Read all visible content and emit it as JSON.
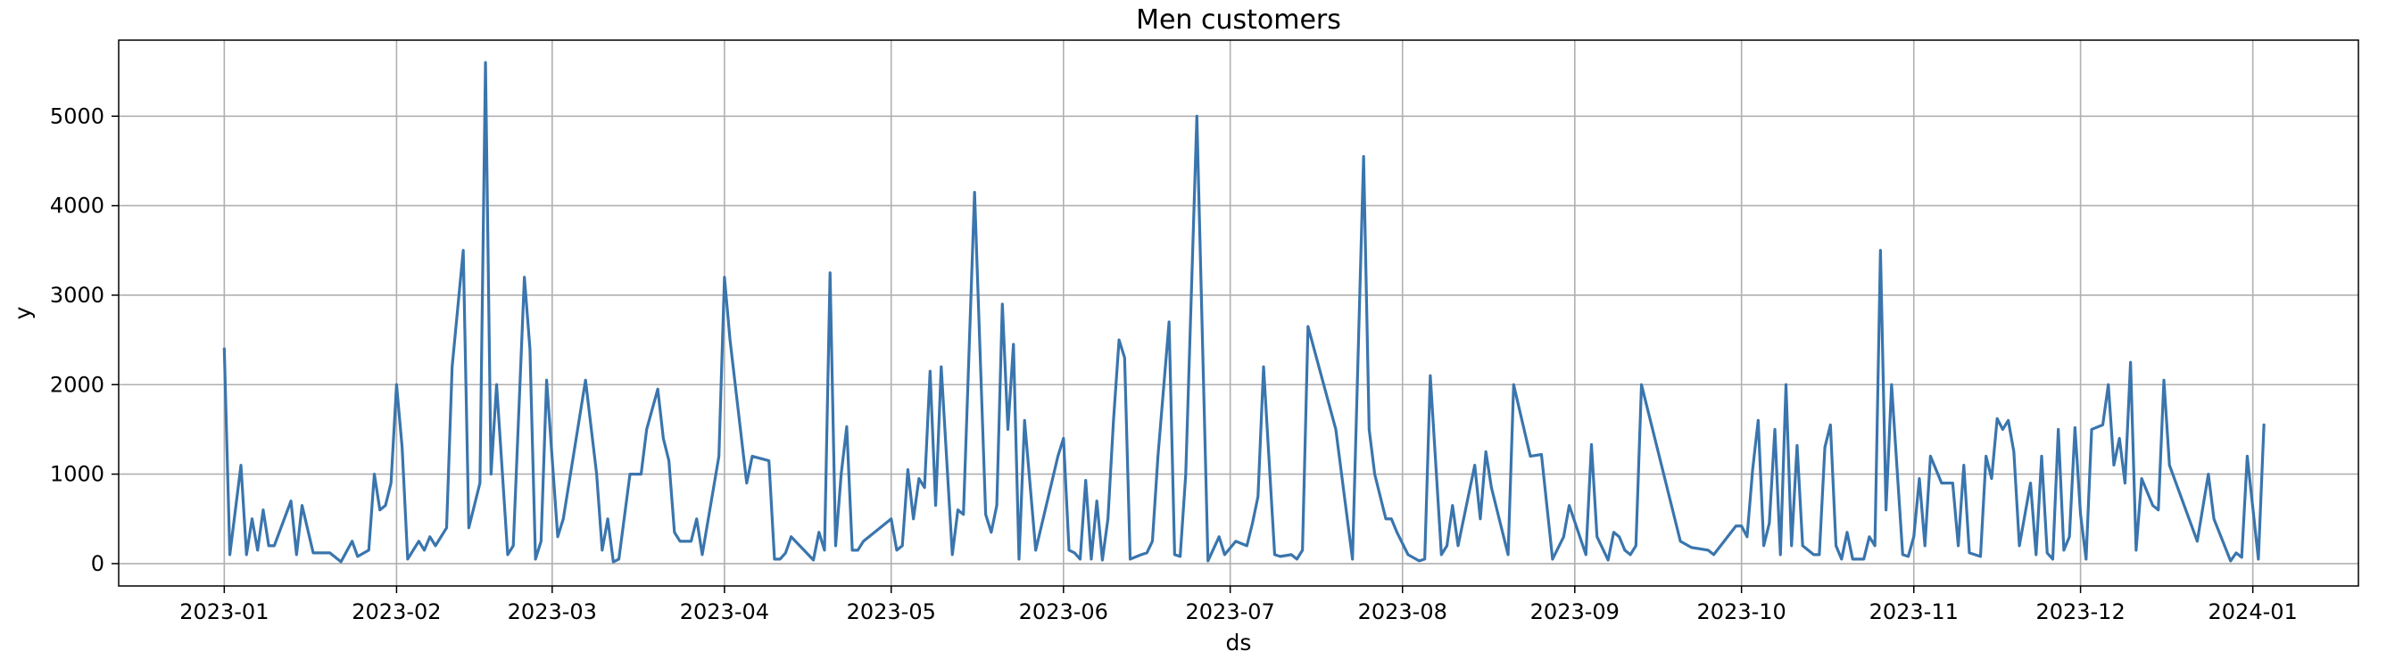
{
  "chart_data": {
    "type": "line",
    "title": "Men customers",
    "xlabel": "ds",
    "ylabel": "y",
    "grid": true,
    "color": "#3a75ad",
    "xlim": [
      "2022-12-13",
      "2024-01-20"
    ],
    "ylim": [
      -250,
      5850
    ],
    "x_ticks": [
      "2023-01-01",
      "2023-02-01",
      "2023-03-01",
      "2023-04-01",
      "2023-05-01",
      "2023-06-01",
      "2023-07-01",
      "2023-08-01",
      "2023-09-01",
      "2023-10-01",
      "2023-11-01",
      "2023-12-01",
      "2024-01-01"
    ],
    "x_tick_labels": [
      "2023-01",
      "2023-02",
      "2023-03",
      "2023-04",
      "2023-05",
      "2023-06",
      "2023-07",
      "2023-08",
      "2023-09",
      "2023-10",
      "2023-11",
      "2023-12",
      "2024-01"
    ],
    "y_ticks": [
      0,
      1000,
      2000,
      3000,
      4000,
      5000
    ],
    "y_tick_labels": [
      "0",
      "1000",
      "2000",
      "3000",
      "4000",
      "5000"
    ],
    "series": [
      {
        "points": [
          [
            "2023-01-01",
            2400
          ],
          [
            "2023-01-02",
            100
          ],
          [
            "2023-01-04",
            1100
          ],
          [
            "2023-01-05",
            100
          ],
          [
            "2023-01-06",
            500
          ],
          [
            "2023-01-07",
            150
          ],
          [
            "2023-01-08",
            600
          ],
          [
            "2023-01-09",
            200
          ],
          [
            "2023-01-10",
            200
          ],
          [
            "2023-01-13",
            700
          ],
          [
            "2023-01-14",
            100
          ],
          [
            "2023-01-15",
            650
          ],
          [
            "2023-01-17",
            120
          ],
          [
            "2023-01-20",
            120
          ],
          [
            "2023-01-22",
            20
          ],
          [
            "2023-01-24",
            250
          ],
          [
            "2023-01-25",
            80
          ],
          [
            "2023-01-27",
            150
          ],
          [
            "2023-01-28",
            1000
          ],
          [
            "2023-01-29",
            600
          ],
          [
            "2023-01-30",
            650
          ],
          [
            "2023-01-31",
            900
          ],
          [
            "2023-02-01",
            2000
          ],
          [
            "2023-02-02",
            1300
          ],
          [
            "2023-02-03",
            50
          ],
          [
            "2023-02-05",
            250
          ],
          [
            "2023-02-06",
            150
          ],
          [
            "2023-02-07",
            300
          ],
          [
            "2023-02-08",
            200
          ],
          [
            "2023-02-10",
            400
          ],
          [
            "2023-02-11",
            2200
          ],
          [
            "2023-02-13",
            3500
          ],
          [
            "2023-02-14",
            400
          ],
          [
            "2023-02-16",
            900
          ],
          [
            "2023-02-17",
            5600
          ],
          [
            "2023-02-18",
            1000
          ],
          [
            "2023-02-19",
            2000
          ],
          [
            "2023-02-21",
            100
          ],
          [
            "2023-02-22",
            200
          ],
          [
            "2023-02-24",
            3200
          ],
          [
            "2023-02-25",
            2400
          ],
          [
            "2023-02-26",
            50
          ],
          [
            "2023-02-27",
            250
          ],
          [
            "2023-02-28",
            2050
          ],
          [
            "2023-03-02",
            300
          ],
          [
            "2023-03-03",
            500
          ],
          [
            "2023-03-07",
            2050
          ],
          [
            "2023-03-09",
            1000
          ],
          [
            "2023-03-10",
            150
          ],
          [
            "2023-03-11",
            500
          ],
          [
            "2023-03-12",
            20
          ],
          [
            "2023-03-13",
            50
          ],
          [
            "2023-03-15",
            1000
          ],
          [
            "2023-03-17",
            1000
          ],
          [
            "2023-03-18",
            1500
          ],
          [
            "2023-03-20",
            1950
          ],
          [
            "2023-03-21",
            1400
          ],
          [
            "2023-03-22",
            1150
          ],
          [
            "2023-03-23",
            350
          ],
          [
            "2023-03-24",
            250
          ],
          [
            "2023-03-26",
            250
          ],
          [
            "2023-03-27",
            500
          ],
          [
            "2023-03-28",
            100
          ],
          [
            "2023-03-31",
            1200
          ],
          [
            "2023-04-01",
            3200
          ],
          [
            "2023-04-02",
            2500
          ],
          [
            "2023-04-05",
            900
          ],
          [
            "2023-04-06",
            1200
          ],
          [
            "2023-04-09",
            1150
          ],
          [
            "2023-04-10",
            50
          ],
          [
            "2023-04-11",
            50
          ],
          [
            "2023-04-12",
            120
          ],
          [
            "2023-04-13",
            300
          ],
          [
            "2023-04-17",
            40
          ],
          [
            "2023-04-18",
            350
          ],
          [
            "2023-04-19",
            150
          ],
          [
            "2023-04-20",
            3250
          ],
          [
            "2023-04-21",
            200
          ],
          [
            "2023-04-22",
            1000
          ],
          [
            "2023-04-23",
            1530
          ],
          [
            "2023-04-24",
            150
          ],
          [
            "2023-04-25",
            150
          ],
          [
            "2023-04-26",
            250
          ],
          [
            "2023-05-01",
            500
          ],
          [
            "2023-05-02",
            150
          ],
          [
            "2023-05-03",
            200
          ],
          [
            "2023-05-04",
            1050
          ],
          [
            "2023-05-05",
            500
          ],
          [
            "2023-05-06",
            950
          ],
          [
            "2023-05-07",
            850
          ],
          [
            "2023-05-08",
            2150
          ],
          [
            "2023-05-09",
            650
          ],
          [
            "2023-05-10",
            2200
          ],
          [
            "2023-05-12",
            100
          ],
          [
            "2023-05-13",
            600
          ],
          [
            "2023-05-14",
            550
          ],
          [
            "2023-05-16",
            4150
          ],
          [
            "2023-05-18",
            550
          ],
          [
            "2023-05-19",
            350
          ],
          [
            "2023-05-20",
            650
          ],
          [
            "2023-05-21",
            2900
          ],
          [
            "2023-05-22",
            1500
          ],
          [
            "2023-05-23",
            2450
          ],
          [
            "2023-05-24",
            50
          ],
          [
            "2023-05-25",
            1600
          ],
          [
            "2023-05-27",
            150
          ],
          [
            "2023-05-31",
            1200
          ],
          [
            "2023-06-01",
            1400
          ],
          [
            "2023-06-02",
            150
          ],
          [
            "2023-06-03",
            120
          ],
          [
            "2023-06-04",
            50
          ],
          [
            "2023-06-05",
            930
          ],
          [
            "2023-06-06",
            50
          ],
          [
            "2023-06-07",
            700
          ],
          [
            "2023-06-08",
            40
          ],
          [
            "2023-06-09",
            500
          ],
          [
            "2023-06-10",
            1600
          ],
          [
            "2023-06-11",
            2500
          ],
          [
            "2023-06-12",
            2300
          ],
          [
            "2023-06-13",
            50
          ],
          [
            "2023-06-15",
            100
          ],
          [
            "2023-06-16",
            120
          ],
          [
            "2023-06-17",
            250
          ],
          [
            "2023-06-18",
            1200
          ],
          [
            "2023-06-20",
            2700
          ],
          [
            "2023-06-21",
            100
          ],
          [
            "2023-06-22",
            80
          ],
          [
            "2023-06-23",
            1000
          ],
          [
            "2023-06-25",
            5000
          ],
          [
            "2023-06-27",
            30
          ],
          [
            "2023-06-29",
            300
          ],
          [
            "2023-06-30",
            100
          ],
          [
            "2023-07-02",
            250
          ],
          [
            "2023-07-04",
            200
          ],
          [
            "2023-07-05",
            450
          ],
          [
            "2023-07-06",
            750
          ],
          [
            "2023-07-07",
            2200
          ],
          [
            "2023-07-09",
            100
          ],
          [
            "2023-07-10",
            80
          ],
          [
            "2023-07-12",
            100
          ],
          [
            "2023-07-13",
            50
          ],
          [
            "2023-07-14",
            150
          ],
          [
            "2023-07-15",
            2650
          ],
          [
            "2023-07-20",
            1500
          ],
          [
            "2023-07-23",
            50
          ],
          [
            "2023-07-25",
            4550
          ],
          [
            "2023-07-26",
            1500
          ],
          [
            "2023-07-27",
            1000
          ],
          [
            "2023-07-29",
            500
          ],
          [
            "2023-07-30",
            500
          ],
          [
            "2023-07-31",
            350
          ],
          [
            "2023-08-02",
            100
          ],
          [
            "2023-08-04",
            30
          ],
          [
            "2023-08-05",
            50
          ],
          [
            "2023-08-06",
            2100
          ],
          [
            "2023-08-08",
            100
          ],
          [
            "2023-08-09",
            200
          ],
          [
            "2023-08-10",
            650
          ],
          [
            "2023-08-11",
            200
          ],
          [
            "2023-08-14",
            1100
          ],
          [
            "2023-08-15",
            500
          ],
          [
            "2023-08-16",
            1250
          ],
          [
            "2023-08-17",
            850
          ],
          [
            "2023-08-20",
            100
          ],
          [
            "2023-08-21",
            2000
          ],
          [
            "2023-08-24",
            1200
          ],
          [
            "2023-08-26",
            1220
          ],
          [
            "2023-08-28",
            50
          ],
          [
            "2023-08-30",
            300
          ],
          [
            "2023-08-31",
            650
          ],
          [
            "2023-09-03",
            100
          ],
          [
            "2023-09-04",
            1330
          ],
          [
            "2023-09-05",
            300
          ],
          [
            "2023-09-07",
            40
          ],
          [
            "2023-09-08",
            350
          ],
          [
            "2023-09-09",
            300
          ],
          [
            "2023-09-10",
            150
          ],
          [
            "2023-09-11",
            100
          ],
          [
            "2023-09-12",
            200
          ],
          [
            "2023-09-13",
            2000
          ],
          [
            "2023-09-20",
            250
          ],
          [
            "2023-09-22",
            180
          ],
          [
            "2023-09-25",
            150
          ],
          [
            "2023-09-26",
            100
          ],
          [
            "2023-09-30",
            420
          ],
          [
            "2023-10-01",
            420
          ],
          [
            "2023-10-02",
            300
          ],
          [
            "2023-10-03",
            1050
          ],
          [
            "2023-10-04",
            1600
          ],
          [
            "2023-10-05",
            200
          ],
          [
            "2023-10-06",
            450
          ],
          [
            "2023-10-07",
            1500
          ],
          [
            "2023-10-08",
            100
          ],
          [
            "2023-10-09",
            2000
          ],
          [
            "2023-10-10",
            200
          ],
          [
            "2023-10-11",
            1320
          ],
          [
            "2023-10-12",
            200
          ],
          [
            "2023-10-14",
            100
          ],
          [
            "2023-10-15",
            100
          ],
          [
            "2023-10-16",
            1300
          ],
          [
            "2023-10-17",
            1550
          ],
          [
            "2023-10-18",
            200
          ],
          [
            "2023-10-19",
            50
          ],
          [
            "2023-10-20",
            350
          ],
          [
            "2023-10-21",
            50
          ],
          [
            "2023-10-23",
            50
          ],
          [
            "2023-10-24",
            300
          ],
          [
            "2023-10-25",
            200
          ],
          [
            "2023-10-26",
            3500
          ],
          [
            "2023-10-27",
            600
          ],
          [
            "2023-10-28",
            2000
          ],
          [
            "2023-10-30",
            100
          ],
          [
            "2023-10-31",
            80
          ],
          [
            "2023-11-01",
            300
          ],
          [
            "2023-11-02",
            950
          ],
          [
            "2023-11-03",
            200
          ],
          [
            "2023-11-04",
            1200
          ],
          [
            "2023-11-06",
            900
          ],
          [
            "2023-11-08",
            900
          ],
          [
            "2023-11-09",
            200
          ],
          [
            "2023-11-10",
            1100
          ],
          [
            "2023-11-11",
            120
          ],
          [
            "2023-11-13",
            80
          ],
          [
            "2023-11-14",
            1200
          ],
          [
            "2023-11-15",
            950
          ],
          [
            "2023-11-16",
            1620
          ],
          [
            "2023-11-17",
            1500
          ],
          [
            "2023-11-18",
            1600
          ],
          [
            "2023-11-19",
            1250
          ],
          [
            "2023-11-20",
            200
          ],
          [
            "2023-11-22",
            900
          ],
          [
            "2023-11-23",
            100
          ],
          [
            "2023-11-24",
            1200
          ],
          [
            "2023-11-25",
            120
          ],
          [
            "2023-11-26",
            50
          ],
          [
            "2023-11-27",
            1500
          ],
          [
            "2023-11-28",
            150
          ],
          [
            "2023-11-29",
            300
          ],
          [
            "2023-11-30",
            1520
          ],
          [
            "2023-12-01",
            550
          ],
          [
            "2023-12-02",
            50
          ],
          [
            "2023-12-03",
            1500
          ],
          [
            "2023-12-05",
            1550
          ],
          [
            "2023-12-06",
            2000
          ],
          [
            "2023-12-07",
            1100
          ],
          [
            "2023-12-08",
            1400
          ],
          [
            "2023-12-09",
            900
          ],
          [
            "2023-12-10",
            2250
          ],
          [
            "2023-12-11",
            150
          ],
          [
            "2023-12-12",
            950
          ],
          [
            "2023-12-14",
            650
          ],
          [
            "2023-12-15",
            600
          ],
          [
            "2023-12-16",
            2050
          ],
          [
            "2023-12-17",
            1100
          ],
          [
            "2023-12-22",
            250
          ],
          [
            "2023-12-24",
            1000
          ],
          [
            "2023-12-25",
            500
          ],
          [
            "2023-12-28",
            30
          ],
          [
            "2023-12-29",
            120
          ],
          [
            "2023-12-30",
            70
          ],
          [
            "2023-12-31",
            1200
          ],
          [
            "2024-01-02",
            50
          ],
          [
            "2024-01-03",
            1550
          ]
        ]
      }
    ]
  }
}
